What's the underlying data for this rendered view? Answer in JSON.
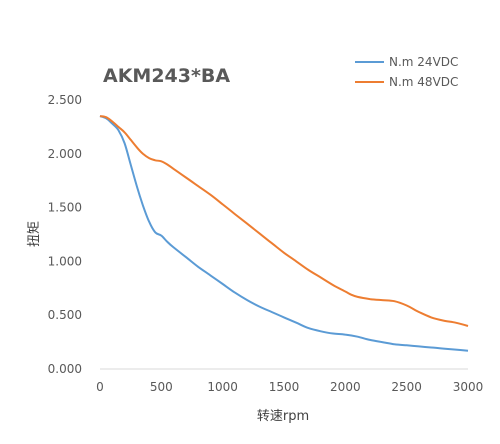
{
  "chart_data": {
    "type": "line",
    "title": "AKM243*BA",
    "xlabel": "转速rpm",
    "ylabel": "扭矩",
    "xlim": [
      0,
      3000
    ],
    "ylim": [
      0,
      2.5
    ],
    "x_ticks": [
      "0",
      "500",
      "1000",
      "1500",
      "2000",
      "2500",
      "3000"
    ],
    "y_ticks": [
      "0.000",
      "0.500",
      "1.000",
      "1.500",
      "2.000",
      "2.500"
    ],
    "grid": false,
    "legend_position": "top-right",
    "series": [
      {
        "name": "N.m    24VDC",
        "color": "#5b9bd5",
        "x": [
          0,
          50,
          100,
          150,
          200,
          250,
          300,
          350,
          400,
          450,
          500,
          550,
          600,
          700,
          800,
          900,
          1000,
          1100,
          1200,
          1300,
          1400,
          1500,
          1600,
          1700,
          1800,
          1900,
          2000,
          2100,
          2200,
          2300,
          2400,
          2500,
          2600,
          2700,
          2800,
          2900,
          3000
        ],
        "y": [
          2.35,
          2.33,
          2.28,
          2.22,
          2.1,
          1.9,
          1.7,
          1.52,
          1.37,
          1.27,
          1.24,
          1.18,
          1.13,
          1.04,
          0.95,
          0.87,
          0.79,
          0.71,
          0.64,
          0.58,
          0.53,
          0.48,
          0.43,
          0.38,
          0.35,
          0.33,
          0.32,
          0.3,
          0.27,
          0.25,
          0.23,
          0.22,
          0.21,
          0.2,
          0.19,
          0.18,
          0.17
        ]
      },
      {
        "name": "N.m    48VDC",
        "color": "#ed7d31",
        "x": [
          0,
          50,
          100,
          150,
          200,
          250,
          300,
          350,
          400,
          450,
          500,
          550,
          600,
          700,
          800,
          900,
          1000,
          1100,
          1200,
          1300,
          1400,
          1500,
          1600,
          1700,
          1800,
          1900,
          2000,
          2050,
          2100,
          2200,
          2300,
          2400,
          2500,
          2600,
          2700,
          2800,
          2900,
          3000
        ],
        "y": [
          2.35,
          2.34,
          2.3,
          2.25,
          2.2,
          2.13,
          2.06,
          2.0,
          1.96,
          1.94,
          1.93,
          1.9,
          1.86,
          1.78,
          1.7,
          1.62,
          1.53,
          1.44,
          1.35,
          1.26,
          1.17,
          1.08,
          1.0,
          0.92,
          0.85,
          0.78,
          0.72,
          0.69,
          0.67,
          0.65,
          0.64,
          0.63,
          0.59,
          0.53,
          0.48,
          0.45,
          0.43,
          0.4
        ]
      }
    ]
  }
}
